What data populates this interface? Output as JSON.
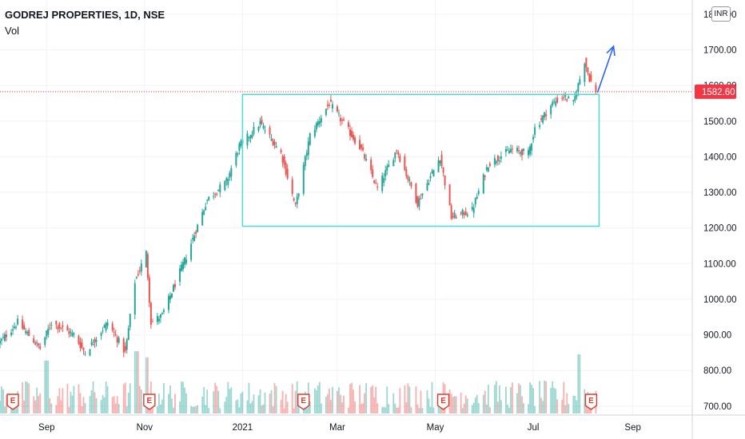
{
  "header": {
    "symbol": "GODREJ PROPERTIES, 1D, NSE",
    "indicator": "Vol",
    "currency": "INR"
  },
  "colors": {
    "up": "#26a69a",
    "down": "#ef5350",
    "last_price": "#f23645",
    "box": "#4dd9d4",
    "arrow": "#2962ff",
    "earnings": "#e2392b"
  },
  "chart_data": {
    "type": "candlestick",
    "symbol": "GODREJ PROPERTIES",
    "interval": "1D",
    "exchange": "NSE",
    "currency": "INR",
    "y_axis": {
      "ticks": [
        700,
        800,
        900,
        1000,
        1100,
        1200,
        1300,
        1400,
        1500,
        1600,
        1700,
        1800
      ],
      "tick_labels": [
        "700.00",
        "800.00",
        "900.00",
        "1000.00",
        "1100.00",
        "1200.00",
        "1300.00",
        "1400.00",
        "1500.00",
        "1600.00",
        "1700.00",
        "1800.00"
      ],
      "range": [
        675,
        1840
      ]
    },
    "x_axis": {
      "labels": [
        {
          "text": "Sep",
          "date": "2020-09-01"
        },
        {
          "text": "Nov",
          "date": "2020-11-01"
        },
        {
          "text": "2021",
          "date": "2021-01-01"
        },
        {
          "text": "Mar",
          "date": "2021-03-01"
        },
        {
          "text": "May",
          "date": "2021-05-01"
        },
        {
          "text": "Jul",
          "date": "2021-07-01"
        },
        {
          "text": "Sep",
          "date": "2021-09-01"
        }
      ],
      "range": [
        "2020-08-03",
        "2021-10-08"
      ]
    },
    "last_price": 1582.6,
    "last_price_label": "1582.60",
    "price_waypoints": [
      {
        "date": "2020-08-03",
        "close": 880
      },
      {
        "date": "2020-08-14",
        "close": 935
      },
      {
        "date": "2020-08-28",
        "close": 862
      },
      {
        "date": "2020-09-04",
        "close": 935
      },
      {
        "date": "2020-09-18",
        "close": 900
      },
      {
        "date": "2020-09-25",
        "close": 850
      },
      {
        "date": "2020-10-09",
        "close": 935
      },
      {
        "date": "2020-10-20",
        "close": 850
      },
      {
        "date": "2020-10-26",
        "close": 1050
      },
      {
        "date": "2020-11-02",
        "close": 1130
      },
      {
        "date": "2020-11-05",
        "close": 935
      },
      {
        "date": "2020-11-12",
        "close": 955
      },
      {
        "date": "2020-11-27",
        "close": 1120
      },
      {
        "date": "2020-12-10",
        "close": 1280
      },
      {
        "date": "2020-12-22",
        "close": 1330
      },
      {
        "date": "2020-12-30",
        "close": 1430
      },
      {
        "date": "2021-01-12",
        "close": 1495
      },
      {
        "date": "2021-01-25",
        "close": 1410
      },
      {
        "date": "2021-02-03",
        "close": 1260
      },
      {
        "date": "2021-02-12",
        "close": 1460
      },
      {
        "date": "2021-02-24",
        "close": 1550
      },
      {
        "date": "2021-03-04",
        "close": 1500
      },
      {
        "date": "2021-03-16",
        "close": 1420
      },
      {
        "date": "2021-03-26",
        "close": 1310
      },
      {
        "date": "2021-04-07",
        "close": 1420
      },
      {
        "date": "2021-04-20",
        "close": 1270
      },
      {
        "date": "2021-05-04",
        "close": 1400
      },
      {
        "date": "2021-05-11",
        "close": 1230
      },
      {
        "date": "2021-05-24",
        "close": 1250
      },
      {
        "date": "2021-06-03",
        "close": 1380
      },
      {
        "date": "2021-06-17",
        "close": 1420
      },
      {
        "date": "2021-06-28",
        "close": 1410
      },
      {
        "date": "2021-07-02",
        "close": 1480
      },
      {
        "date": "2021-07-13",
        "close": 1550
      },
      {
        "date": "2021-07-20",
        "close": 1570
      },
      {
        "date": "2021-07-26",
        "close": 1550
      },
      {
        "date": "2021-08-02",
        "close": 1670
      },
      {
        "date": "2021-08-05",
        "close": 1620
      },
      {
        "date": "2021-08-09",
        "close": 1582.6
      }
    ],
    "volume_spikes": [
      {
        "date": "2020-09-01",
        "height": 0.85
      },
      {
        "date": "2020-10-27",
        "height": 1.0
      },
      {
        "date": "2020-11-02",
        "height": 0.9
      },
      {
        "date": "2021-07-30",
        "height": 0.95
      }
    ],
    "earnings_markers": [
      {
        "date": "2020-08-11",
        "label": "E"
      },
      {
        "date": "2020-11-04",
        "label": "E"
      },
      {
        "date": "2021-02-08",
        "label": "E"
      },
      {
        "date": "2021-05-06",
        "label": "E"
      },
      {
        "date": "2021-08-06",
        "label": "E"
      }
    ],
    "annotations": [
      {
        "type": "rectangle",
        "x1": "2021-01-01",
        "x2": "2021-08-11",
        "y1": 1205,
        "y2": 1575
      },
      {
        "type": "arrow",
        "x1": "2021-08-10",
        "y1": 1580,
        "x2": "2021-08-20",
        "y2": 1710
      }
    ],
    "grid": true
  }
}
